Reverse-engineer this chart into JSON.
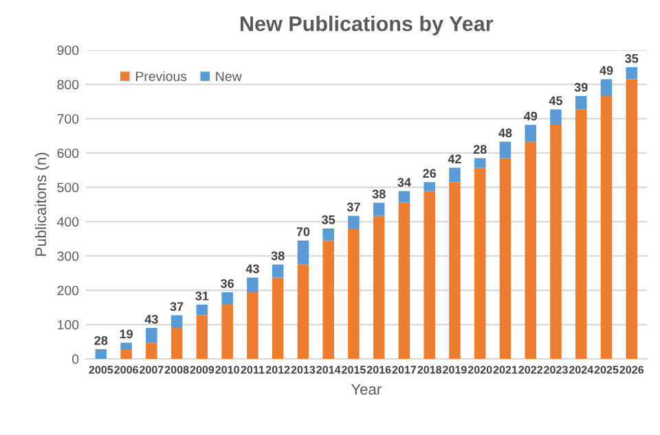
{
  "chart_data": {
    "type": "bar",
    "title": "New Publications by Year",
    "xlabel": "Year",
    "ylabel": "Publicaitons (n)",
    "categories": [
      "2005",
      "2006",
      "2007",
      "2008",
      "2009",
      "2010",
      "2011",
      "2012",
      "2013",
      "2014",
      "2015",
      "2016",
      "2017",
      "2018",
      "2019",
      "2020",
      "2021",
      "2022",
      "2023",
      "2024",
      "2025",
      "2026"
    ],
    "stacked": true,
    "series": [
      {
        "name": "Previous",
        "color": "#ed7d31",
        "values": [
          0,
          28,
          47,
          90,
          127,
          158,
          194,
          237,
          275,
          345,
          380,
          417,
          455,
          489,
          515,
          557,
          585,
          633,
          682,
          727,
          766,
          815
        ]
      },
      {
        "name": "New",
        "color": "#5b9bd5",
        "values": [
          28,
          19,
          43,
          37,
          31,
          36,
          43,
          38,
          70,
          35,
          37,
          38,
          34,
          26,
          42,
          28,
          48,
          49,
          45,
          39,
          49,
          35
        ],
        "value_labels": [
          "28",
          "19",
          "43",
          "37",
          "31",
          "36",
          "43",
          "38",
          "70",
          "35",
          "37",
          "38",
          "34",
          "26",
          "42",
          "28",
          "48",
          "49",
          "45",
          "39",
          "49",
          "35"
        ]
      }
    ],
    "ylim": [
      0,
      900
    ],
    "yticks": [
      0,
      100,
      200,
      300,
      400,
      500,
      600,
      700,
      800,
      900
    ],
    "grid": "y",
    "legend": "top left"
  }
}
